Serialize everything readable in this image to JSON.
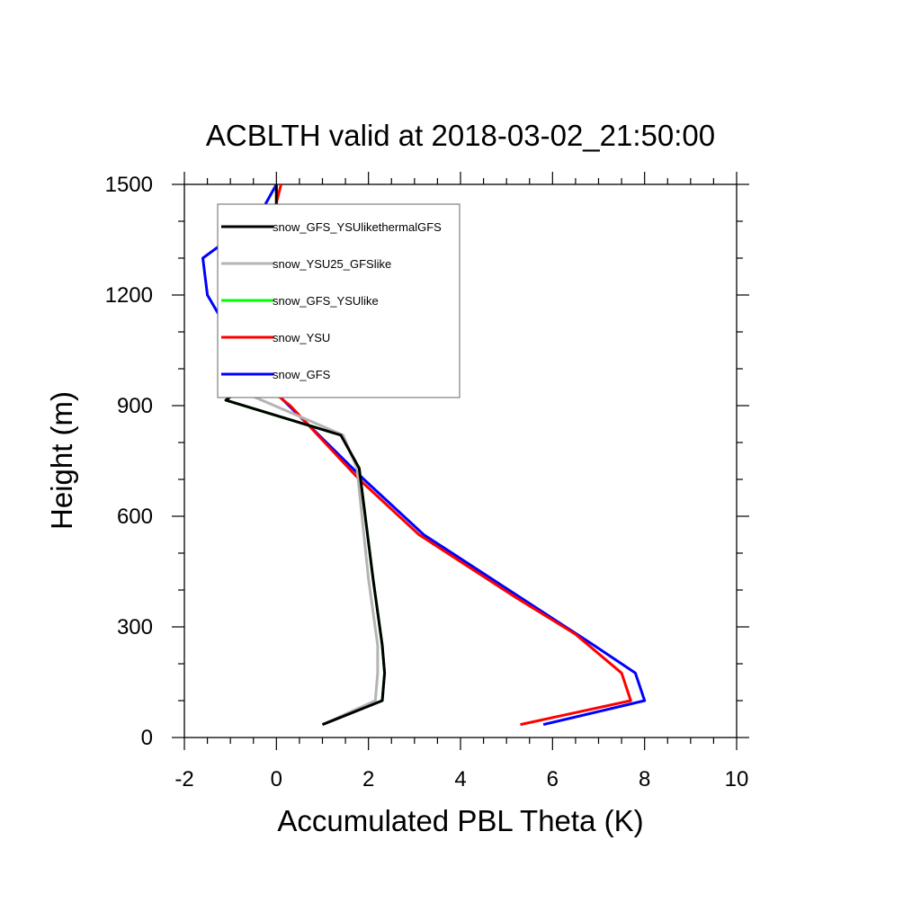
{
  "chart_data": {
    "type": "line",
    "title": "ACBLTH valid at 2018-03-02_21:50:00",
    "xlabel": "Accumulated PBL Theta (K)",
    "ylabel": "Height (m)",
    "xlim": [
      -2,
      10
    ],
    "ylim": [
      0,
      1500
    ],
    "xticks": [
      "-2",
      "0",
      "2",
      "4",
      "6",
      "8",
      "10"
    ],
    "yticks": [
      "0",
      "300",
      "600",
      "900",
      "1200",
      "1500"
    ],
    "grid": false,
    "legend_position": "top-left",
    "series": [
      {
        "name": "snow_GFS_YSUlikethermalGFS",
        "color": "#000000",
        "x": [
          1.0,
          2.3,
          2.35,
          2.3,
          2.1,
          1.8,
          1.4,
          -1.1,
          -0.1,
          0.0,
          0.0,
          0.0,
          0.0,
          0.0,
          0.0
        ],
        "y": [
          35,
          100,
          175,
          250,
          430,
          730,
          820,
          915,
          1010,
          1090,
          1200,
          1300,
          1410,
          1450,
          1500
        ]
      },
      {
        "name": "snow_YSU25_GFSlike",
        "color": "#b4b4b4",
        "x": [
          1.0,
          2.15,
          2.2,
          2.2,
          2.0,
          1.75,
          1.45,
          -0.6,
          -0.2,
          0.0,
          0.0,
          0.0,
          0.0,
          0.0
        ],
        "y": [
          35,
          100,
          175,
          250,
          430,
          730,
          820,
          930,
          1010,
          1090,
          1200,
          1300,
          1410,
          1500
        ]
      },
      {
        "name": "snow_GFS_YSUlike",
        "color": "#00ff00",
        "x": [
          1.0,
          2.3,
          2.35,
          2.3,
          2.1,
          1.8,
          1.4,
          -1.1,
          -0.1,
          0.0,
          0.0,
          0.0,
          0.0,
          0.0,
          0.0
        ],
        "y": [
          35,
          100,
          175,
          250,
          430,
          730,
          820,
          915,
          1010,
          1090,
          1200,
          1300,
          1410,
          1450,
          1500
        ]
      },
      {
        "name": "snow_YSU",
        "color": "#ff0000",
        "x": [
          5.3,
          7.7,
          7.5,
          6.5,
          5.2,
          3.1,
          1.8,
          0.3,
          -0.7,
          -0.8,
          -0.8,
          -0.6,
          -0.2,
          0.0,
          0.1
        ],
        "y": [
          35,
          100,
          175,
          280,
          380,
          550,
          700,
          900,
          1000,
          1080,
          1150,
          1250,
          1350,
          1450,
          1500
        ]
      },
      {
        "name": "snow_GFS",
        "color": "#0000ff",
        "x": [
          5.8,
          8.0,
          7.8,
          6.9,
          5.3,
          3.2,
          1.9,
          -0.3,
          -0.8,
          -1.5,
          -1.6,
          -0.4,
          0.0
        ],
        "y": [
          35,
          100,
          175,
          250,
          380,
          550,
          700,
          970,
          1050,
          1200,
          1300,
          1410,
          1500
        ]
      }
    ]
  }
}
